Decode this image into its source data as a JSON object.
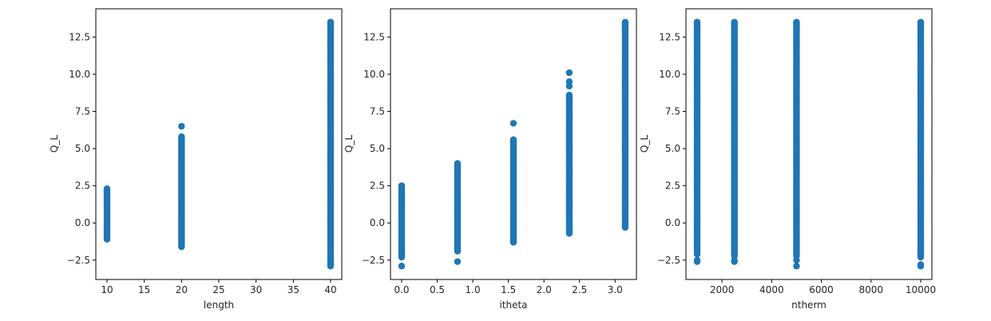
{
  "chart_data": [
    {
      "type": "scatter",
      "xlabel": "length",
      "ylabel": "Q_L",
      "xlim": [
        8.5,
        41.5
      ],
      "ylim": [
        -3.8,
        14.4
      ],
      "xticks": [
        10,
        15,
        20,
        25,
        30,
        35,
        40
      ],
      "xtick_labels": [
        "10",
        "15",
        "20",
        "25",
        "30",
        "35",
        "40"
      ],
      "yticks": [
        -2.5,
        0.0,
        2.5,
        5.0,
        7.5,
        10.0,
        12.5
      ],
      "ytick_labels": [
        "−2.5",
        "0.0",
        "2.5",
        "5.0",
        "7.5",
        "10.0",
        "12.5"
      ],
      "color": "#1f77b4",
      "series": [
        {
          "x": 10,
          "y_min": -1.1,
          "y_max": 2.3,
          "extra_points": []
        },
        {
          "x": 20,
          "y_min": -1.6,
          "y_max": 5.8,
          "extra_points": [
            6.5
          ]
        },
        {
          "x": 40,
          "y_min": -2.9,
          "y_max": 13.5,
          "extra_points": []
        }
      ]
    },
    {
      "type": "scatter",
      "xlabel": "itheta",
      "ylabel": "Q_L",
      "xlim": [
        -0.157,
        3.3
      ],
      "ylim": [
        -3.8,
        14.4
      ],
      "xticks": [
        0.0,
        0.5,
        1.0,
        1.5,
        2.0,
        2.5,
        3.0
      ],
      "xtick_labels": [
        "0.0",
        "0.5",
        "1.0",
        "1.5",
        "2.0",
        "2.5",
        "3.0"
      ],
      "yticks": [
        -2.5,
        0.0,
        2.5,
        5.0,
        7.5,
        10.0,
        12.5
      ],
      "ytick_labels": [
        "−2.5",
        "0.0",
        "2.5",
        "5.0",
        "7.5",
        "10.0",
        "12.5"
      ],
      "color": "#1f77b4",
      "series": [
        {
          "x": 0.0,
          "y_min": -2.3,
          "y_max": 2.5,
          "extra_points": [
            -2.9
          ]
        },
        {
          "x": 0.785,
          "y_min": -1.9,
          "y_max": 4.0,
          "extra_points": [
            -2.6
          ]
        },
        {
          "x": 1.571,
          "y_min": -1.3,
          "y_max": 5.6,
          "extra_points": [
            6.7
          ]
        },
        {
          "x": 2.356,
          "y_min": -0.7,
          "y_max": 8.6,
          "extra_points": [
            9.2,
            9.5,
            10.1
          ]
        },
        {
          "x": 3.142,
          "y_min": -0.3,
          "y_max": 13.5,
          "extra_points": []
        }
      ]
    },
    {
      "type": "scatter",
      "xlabel": "ntherm",
      "ylabel": "Q_L",
      "xlim": [
        550,
        10450
      ],
      "ylim": [
        -3.8,
        14.4
      ],
      "xticks": [
        2000,
        4000,
        6000,
        8000,
        10000
      ],
      "xtick_labels": [
        "2000",
        "4000",
        "6000",
        "8000",
        "10000"
      ],
      "yticks": [
        -2.5,
        0.0,
        2.5,
        5.0,
        7.5,
        10.0,
        12.5
      ],
      "ytick_labels": [
        "−2.5",
        "0.0",
        "2.5",
        "5.0",
        "7.5",
        "10.0",
        "12.5"
      ],
      "color": "#1f77b4",
      "series": [
        {
          "x": 1000,
          "y_min": -2.1,
          "y_max": 13.5,
          "extra_points": [
            -2.5,
            -2.6
          ]
        },
        {
          "x": 2500,
          "y_min": -2.2,
          "y_max": 13.5,
          "extra_points": [
            -2.5,
            -2.6
          ]
        },
        {
          "x": 5000,
          "y_min": -2.2,
          "y_max": 13.5,
          "extra_points": [
            -2.5,
            -2.9
          ]
        },
        {
          "x": 10000,
          "y_min": -2.3,
          "y_max": 13.5,
          "extra_points": [
            -2.8,
            -2.9
          ]
        }
      ]
    }
  ]
}
